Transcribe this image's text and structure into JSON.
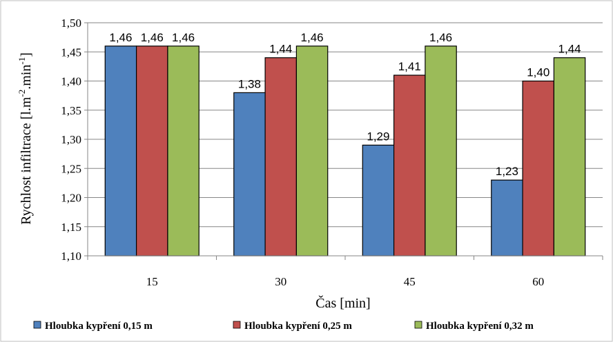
{
  "chart_data": {
    "type": "bar",
    "categories": [
      "15",
      "30",
      "45",
      "60"
    ],
    "series": [
      {
        "name": "Hloubka kypření 0,15 m",
        "color": "#4f81bd",
        "values": [
          1.46,
          1.38,
          1.29,
          1.23
        ],
        "labels": [
          "1,46",
          "1,38",
          "1,29",
          "1,23"
        ]
      },
      {
        "name": "Hloubka kypření 0,25 m",
        "color": "#c0504d",
        "values": [
          1.46,
          1.44,
          1.41,
          1.4
        ],
        "labels": [
          "1,46",
          "1,44",
          "1,41",
          "1,40"
        ]
      },
      {
        "name": "Hloubka kypření 0,32 m",
        "color": "#9bbb59",
        "values": [
          1.46,
          1.46,
          1.46,
          1.44
        ],
        "labels": [
          "1,46",
          "1,46",
          "1,46",
          "1,44"
        ]
      }
    ],
    "xlabel": "Čas [min]",
    "ylabel": "Rychlost infiltrace [l.m",
    "ylabel_sup1": "-2",
    "ylabel_mid": ".min",
    "ylabel_sup2": "-1",
    "ylabel_end": "]",
    "ylim": [
      1.1,
      1.5
    ],
    "yticks": [
      "1,10",
      "1,15",
      "1,20",
      "1,25",
      "1,30",
      "1,35",
      "1,40",
      "1,45",
      "1,50"
    ],
    "grid": true,
    "legend_position": "bottom"
  }
}
